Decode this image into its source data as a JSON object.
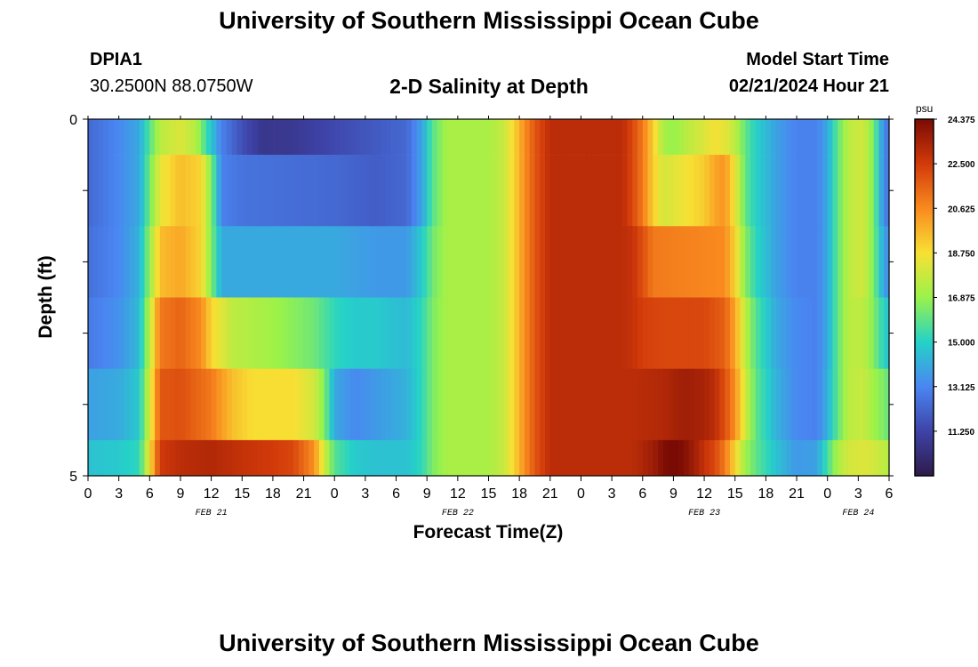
{
  "header": {
    "title": "University of Southern Mississippi Ocean Cube",
    "station_id": "DPIA1",
    "coordinates": "30.2500N  88.0750W",
    "chart_heading": "2-D Salinity at Depth",
    "model_start_label": "Model Start Time",
    "model_start_value": "02/21/2024 Hour 21"
  },
  "footer": {
    "title": "University of Southern Mississippi Ocean Cube"
  },
  "chart_data": {
    "type": "heatmap",
    "title": "2-D Salinity at Depth",
    "xlabel": "Forecast Time(Z)",
    "ylabel": "Depth (ft)",
    "ylim": [
      0,
      5
    ],
    "y_ticks": [
      "0",
      "5"
    ],
    "x_tick_labels": [
      "0",
      "3",
      "6",
      "9",
      "12",
      "15",
      "18",
      "21",
      "0",
      "3",
      "6",
      "9",
      "12",
      "15",
      "18",
      "21",
      "0",
      "3",
      "6",
      "9",
      "12",
      "15",
      "18",
      "21",
      "0",
      "3",
      "6"
    ],
    "date_labels": [
      {
        "label": "FEB 21",
        "hour": 12
      },
      {
        "label": "FEB 22",
        "hour": 36
      },
      {
        "label": "FEB 23",
        "hour": 60
      },
      {
        "label": "FEB 24",
        "hour": 75
      }
    ],
    "hours_total": 78,
    "depth_layers": [
      {
        "depth": 0,
        "breakpoints": [
          [
            0,
            12.3
          ],
          [
            3,
            13.2
          ],
          [
            5,
            14.0
          ],
          [
            6,
            15.8
          ],
          [
            7,
            17.5
          ],
          [
            9,
            18.2
          ],
          [
            10.5,
            17.4
          ],
          [
            11.5,
            15.5
          ],
          [
            13,
            13.0
          ],
          [
            15,
            11.6
          ],
          [
            17,
            10.7
          ],
          [
            20,
            10.8
          ],
          [
            24,
            11.4
          ],
          [
            28,
            11.9
          ],
          [
            31,
            12.3
          ],
          [
            32.5,
            13.8
          ],
          [
            33.5,
            15.8
          ],
          [
            35,
            17.2
          ],
          [
            39,
            17.2
          ],
          [
            40.5,
            17.8
          ],
          [
            41.5,
            19.0
          ],
          [
            42.5,
            20.5
          ],
          [
            43.5,
            21.8
          ],
          [
            45,
            23.0
          ],
          [
            52,
            23.0
          ],
          [
            53,
            22.2
          ],
          [
            54,
            21.0
          ],
          [
            55,
            19.2
          ],
          [
            56,
            17.2
          ],
          [
            57,
            16.8
          ],
          [
            58.5,
            17.6
          ],
          [
            60,
            18.2
          ],
          [
            61,
            18.7
          ],
          [
            62,
            18.4
          ],
          [
            63,
            17.6
          ],
          [
            64,
            16.0
          ],
          [
            65,
            15.0
          ],
          [
            67,
            13.8
          ],
          [
            69,
            13.0
          ],
          [
            71,
            13.0
          ],
          [
            72,
            14.0
          ],
          [
            73,
            16.0
          ],
          [
            74,
            17.5
          ],
          [
            75.5,
            18.0
          ],
          [
            76.5,
            16.4
          ],
          [
            77.5,
            13.2
          ],
          [
            78,
            12.5
          ]
        ]
      },
      {
        "depth": 1,
        "breakpoints": [
          [
            0,
            12.3
          ],
          [
            3,
            13.2
          ],
          [
            5,
            14.0
          ],
          [
            6,
            16.2
          ],
          [
            7,
            18.4
          ],
          [
            9,
            19.5
          ],
          [
            11,
            19.0
          ],
          [
            12,
            16.5
          ],
          [
            13,
            13.0
          ],
          [
            15,
            12.6
          ],
          [
            24,
            12.3
          ],
          [
            28,
            12.0
          ],
          [
            31,
            12.3
          ],
          [
            32.5,
            13.8
          ],
          [
            33.5,
            15.8
          ],
          [
            35,
            17.2
          ],
          [
            39,
            17.2
          ],
          [
            40.5,
            17.8
          ],
          [
            41.5,
            19.0
          ],
          [
            42.5,
            20.5
          ],
          [
            43.5,
            21.8
          ],
          [
            45,
            23.0
          ],
          [
            52,
            23.0
          ],
          [
            53,
            22.2
          ],
          [
            54,
            21.0
          ],
          [
            55,
            19.2
          ],
          [
            56,
            18.0
          ],
          [
            58,
            18.6
          ],
          [
            60,
            19.2
          ],
          [
            61,
            20.0
          ],
          [
            62,
            20.4
          ],
          [
            63,
            18.5
          ],
          [
            64,
            16.0
          ],
          [
            65,
            15.0
          ],
          [
            67,
            13.8
          ],
          [
            69,
            13.0
          ],
          [
            71,
            13.0
          ],
          [
            72,
            14.0
          ],
          [
            73,
            16.0
          ],
          [
            74,
            17.5
          ],
          [
            75.5,
            18.0
          ],
          [
            76.5,
            16.4
          ],
          [
            77.5,
            13.2
          ],
          [
            78,
            12.5
          ]
        ]
      },
      {
        "depth": 2,
        "breakpoints": [
          [
            0,
            12.5
          ],
          [
            3,
            13.2
          ],
          [
            5,
            14.2
          ],
          [
            6,
            16.8
          ],
          [
            7,
            19.5
          ],
          [
            9,
            20.0
          ],
          [
            11,
            19.0
          ],
          [
            12,
            16.5
          ],
          [
            13,
            14.0
          ],
          [
            24,
            14.0
          ],
          [
            28,
            13.6
          ],
          [
            31,
            13.6
          ],
          [
            32.5,
            14.8
          ],
          [
            33.5,
            16.2
          ],
          [
            35,
            17.2
          ],
          [
            39,
            17.2
          ],
          [
            40.5,
            17.8
          ],
          [
            41.5,
            19.0
          ],
          [
            42.5,
            20.5
          ],
          [
            43.5,
            21.8
          ],
          [
            45,
            23.0
          ],
          [
            52,
            23.0
          ],
          [
            53,
            22.8
          ],
          [
            54,
            22.0
          ],
          [
            55,
            21.0
          ],
          [
            62,
            20.6
          ],
          [
            63,
            19.0
          ],
          [
            64,
            16.6
          ],
          [
            65,
            15.2
          ],
          [
            67,
            13.8
          ],
          [
            69,
            13.0
          ],
          [
            71,
            13.0
          ],
          [
            72,
            14.0
          ],
          [
            73,
            16.0
          ],
          [
            74,
            17.5
          ],
          [
            75.5,
            18.0
          ],
          [
            76.5,
            16.4
          ],
          [
            77.5,
            13.8
          ],
          [
            78,
            13.2
          ]
        ]
      },
      {
        "depth": 3,
        "breakpoints": [
          [
            0,
            12.8
          ],
          [
            3,
            13.4
          ],
          [
            5,
            14.4
          ],
          [
            6,
            17.5
          ],
          [
            7,
            21.0
          ],
          [
            9,
            21.5
          ],
          [
            11,
            20.6
          ],
          [
            12,
            19.0
          ],
          [
            14,
            17.6
          ],
          [
            18,
            17.0
          ],
          [
            22,
            16.2
          ],
          [
            24,
            15.2
          ],
          [
            26,
            14.8
          ],
          [
            28,
            14.8
          ],
          [
            31,
            14.4
          ],
          [
            32.5,
            15.2
          ],
          [
            33.5,
            16.4
          ],
          [
            35,
            17.2
          ],
          [
            39,
            17.2
          ],
          [
            40.5,
            17.8
          ],
          [
            41.5,
            19.0
          ],
          [
            42.5,
            20.5
          ],
          [
            43.5,
            21.8
          ],
          [
            45,
            23.0
          ],
          [
            52,
            23.0
          ],
          [
            53,
            22.8
          ],
          [
            54,
            22.4
          ],
          [
            56,
            22.2
          ],
          [
            60,
            22.2
          ],
          [
            62,
            21.6
          ],
          [
            63,
            20.0
          ],
          [
            64,
            17.6
          ],
          [
            65,
            15.8
          ],
          [
            67,
            14.0
          ],
          [
            69,
            13.2
          ],
          [
            71,
            13.0
          ],
          [
            72,
            14.0
          ],
          [
            73,
            16.0
          ],
          [
            74,
            17.5
          ],
          [
            75.5,
            17.6
          ],
          [
            76.5,
            16.5
          ],
          [
            77.5,
            15.0
          ],
          [
            78,
            14.6
          ]
        ]
      },
      {
        "depth": 4,
        "breakpoints": [
          [
            0,
            13.8
          ],
          [
            3,
            14.0
          ],
          [
            5,
            14.8
          ],
          [
            6,
            18.0
          ],
          [
            7,
            21.8
          ],
          [
            9,
            22.0
          ],
          [
            12,
            21.0
          ],
          [
            14,
            19.5
          ],
          [
            16,
            18.8
          ],
          [
            20,
            18.8
          ],
          [
            22,
            18.0
          ],
          [
            23,
            16.5
          ],
          [
            24,
            14.0
          ],
          [
            26,
            13.2
          ],
          [
            28,
            13.6
          ],
          [
            31,
            14.2
          ],
          [
            32.5,
            15.2
          ],
          [
            33.5,
            16.4
          ],
          [
            35,
            17.2
          ],
          [
            39,
            17.2
          ],
          [
            40.5,
            17.8
          ],
          [
            41.5,
            19.0
          ],
          [
            42.5,
            20.5
          ],
          [
            43.5,
            21.8
          ],
          [
            45,
            23.0
          ],
          [
            53,
            23.0
          ],
          [
            56,
            23.2
          ],
          [
            58,
            23.6
          ],
          [
            60,
            23.4
          ],
          [
            61,
            23.0
          ],
          [
            62,
            22.0
          ],
          [
            63,
            20.5
          ],
          [
            64,
            18.0
          ],
          [
            65,
            16.0
          ],
          [
            67,
            14.2
          ],
          [
            69,
            13.2
          ],
          [
            71,
            13.0
          ],
          [
            72,
            14.2
          ],
          [
            73,
            16.0
          ],
          [
            74,
            17.5
          ],
          [
            75.5,
            17.8
          ],
          [
            76.5,
            17.0
          ],
          [
            77.5,
            16.4
          ],
          [
            78,
            16.0
          ]
        ]
      },
      {
        "depth": 5,
        "breakpoints": [
          [
            0,
            14.6
          ],
          [
            3,
            14.8
          ],
          [
            5,
            15.2
          ],
          [
            6,
            18.6
          ],
          [
            7,
            22.5
          ],
          [
            9,
            23.0
          ],
          [
            12,
            23.2
          ],
          [
            15,
            22.8
          ],
          [
            18,
            22.5
          ],
          [
            20,
            22.2
          ],
          [
            22,
            20.5
          ],
          [
            23,
            18.0
          ],
          [
            24,
            15.8
          ],
          [
            26,
            14.8
          ],
          [
            28,
            14.6
          ],
          [
            31,
            14.6
          ],
          [
            32.5,
            15.2
          ],
          [
            33.5,
            16.4
          ],
          [
            35,
            17.2
          ],
          [
            39,
            17.2
          ],
          [
            40.5,
            17.8
          ],
          [
            41.5,
            19.0
          ],
          [
            42.5,
            20.5
          ],
          [
            43.5,
            21.8
          ],
          [
            45,
            23.0
          ],
          [
            53,
            23.0
          ],
          [
            55,
            23.6
          ],
          [
            56,
            24.2
          ],
          [
            57,
            24.6
          ],
          [
            58,
            24.2
          ],
          [
            59,
            23.6
          ],
          [
            60,
            22.8
          ],
          [
            61,
            22.2
          ],
          [
            62,
            21.0
          ],
          [
            63,
            19.0
          ],
          [
            64,
            17.0
          ],
          [
            65,
            16.0
          ],
          [
            67,
            14.6
          ],
          [
            69,
            13.6
          ],
          [
            71,
            13.8
          ],
          [
            72,
            15.6
          ],
          [
            73,
            17.2
          ],
          [
            74,
            18.0
          ],
          [
            75.5,
            18.2
          ],
          [
            76.5,
            18.0
          ],
          [
            77.5,
            17.6
          ],
          [
            78,
            17.4
          ]
        ]
      }
    ],
    "colorbar": {
      "unit": "psu",
      "min": 9.375,
      "max": 24.375,
      "tick_values": [
        24.375,
        22.5,
        20.625,
        18.75,
        16.875,
        15.0,
        13.125,
        11.25
      ],
      "tick_labels": [
        "24.375",
        "22.500",
        "20.625",
        "18.750",
        "16.875",
        "15.000",
        "13.125",
        "11.250"
      ],
      "color_stops": [
        "#2e1a4a",
        "#3e43a8",
        "#4a86f2",
        "#24d2c8",
        "#9af24a",
        "#f8e034",
        "#f98a1f",
        "#d23a0a",
        "#7a0b04"
      ]
    }
  }
}
